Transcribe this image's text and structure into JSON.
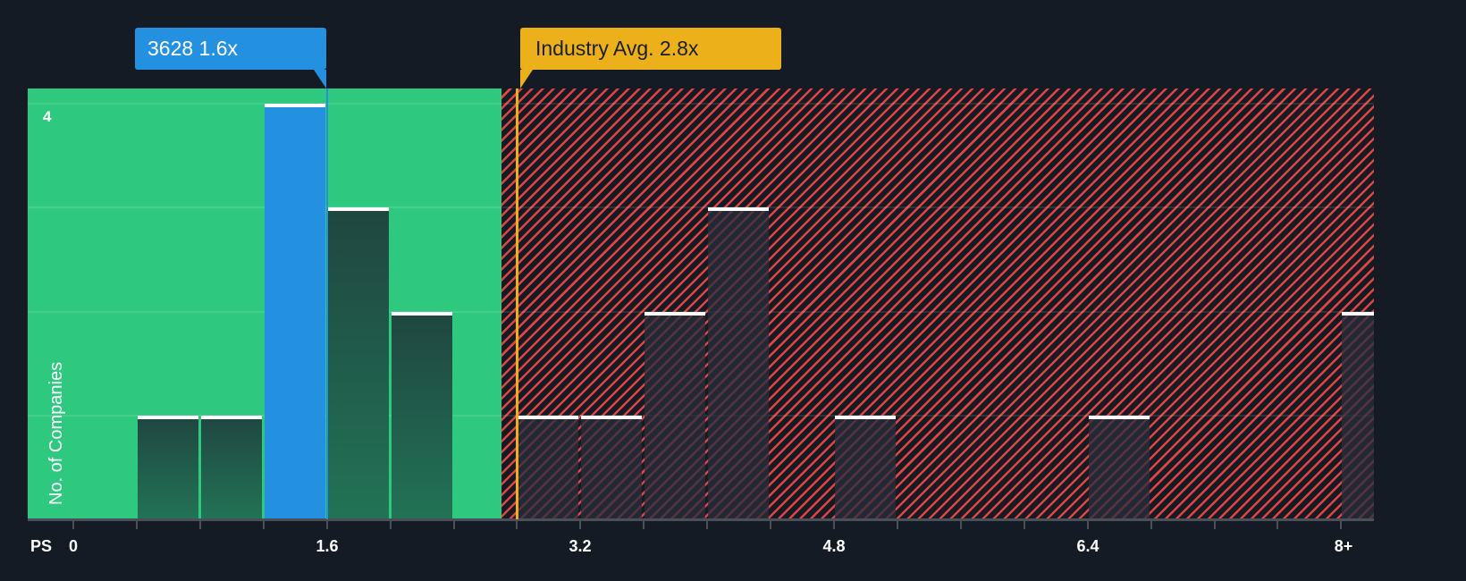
{
  "chart_data": {
    "type": "bar",
    "title": "",
    "xlabel": "PS",
    "ylabel": "No. of Companies",
    "x_tick_labels": [
      "0",
      "1.6",
      "3.2",
      "4.8",
      "6.4",
      "8+"
    ],
    "y_tick_labels": [
      "4"
    ],
    "ylim": [
      0,
      4
    ],
    "xlim": [
      0,
      8.4
    ],
    "grid": true,
    "bin_width": 0.4,
    "bins": [
      {
        "range": "0.4-0.8",
        "start": 0.4,
        "count": 1,
        "zone": "below_avg"
      },
      {
        "range": "0.8-1.2",
        "start": 0.8,
        "count": 1,
        "zone": "below_avg"
      },
      {
        "range": "1.2-1.6",
        "start": 1.2,
        "count": 4,
        "zone": "company",
        "highlight": true
      },
      {
        "range": "1.6-2.0",
        "start": 1.6,
        "count": 3,
        "zone": "below_avg"
      },
      {
        "range": "2.0-2.4",
        "start": 2.0,
        "count": 2,
        "zone": "below_avg"
      },
      {
        "range": "2.8-3.2",
        "start": 2.8,
        "count": 1,
        "zone": "above_avg"
      },
      {
        "range": "3.2-3.6",
        "start": 3.2,
        "count": 1,
        "zone": "above_avg"
      },
      {
        "range": "3.6-4.0",
        "start": 3.6,
        "count": 2,
        "zone": "above_avg"
      },
      {
        "range": "4.0-4.4",
        "start": 4.0,
        "count": 3,
        "zone": "above_avg"
      },
      {
        "range": "4.8-5.2",
        "start": 4.8,
        "count": 1,
        "zone": "above_avg"
      },
      {
        "range": "6.4-6.8",
        "start": 6.4,
        "count": 1,
        "zone": "above_avg"
      },
      {
        "range": "8+",
        "start": 8.0,
        "count": 2,
        "zone": "above_avg"
      }
    ],
    "annotations": [
      {
        "label": "3628 1.6x",
        "value": 1.6,
        "type": "company"
      },
      {
        "label": "Industry Avg. 2.8x",
        "value": 2.8,
        "type": "industry_average"
      }
    ],
    "green_zone_end": 2.7
  },
  "callouts": {
    "company": "3628 1.6x",
    "industry": "Industry Avg. 2.8x"
  },
  "axis": {
    "x_name": "PS",
    "y_name": "No. of Companies",
    "y_top_tick": "4",
    "x_ticks": [
      "0",
      "1.6",
      "3.2",
      "4.8",
      "6.4",
      "8+"
    ]
  },
  "colors": {
    "background": "#151b24",
    "green_zone": "#2ec97e",
    "company_bar": "#2391e0",
    "industry_marker": "#ecb11a",
    "hatch_red": "#e04444"
  }
}
